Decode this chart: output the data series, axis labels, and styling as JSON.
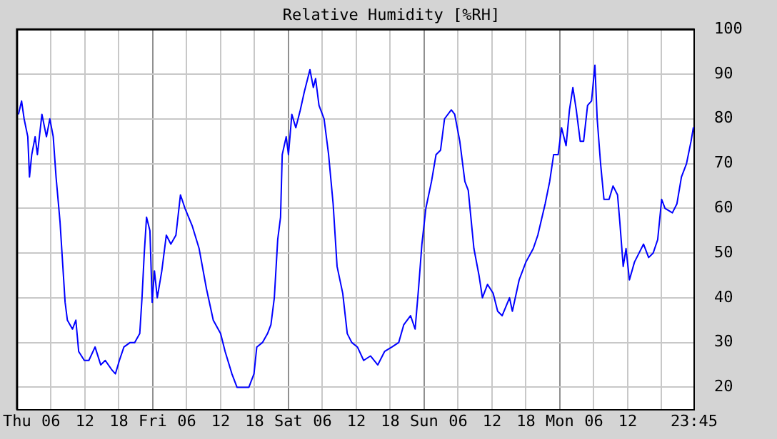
{
  "chart_data": {
    "type": "line",
    "title": "Relative Humidity [%RH]",
    "x": [
      "--01-02T00:15",
      "--01-02T00:48",
      "--01-02T01:15",
      "--01-02T01:54",
      "--01-02T02:12",
      "--01-02T02:36",
      "--01-02T03:12",
      "--01-02T03:36",
      "--01-02T04:24",
      "--01-02T05:12",
      "--01-02T05:48",
      "--01-02T06:24",
      "--01-02T06:54",
      "--01-02T07:36",
      "--01-02T08:06",
      "--01-02T08:30",
      "--01-02T08:54",
      "--01-02T09:48",
      "--01-02T10:24",
      "--01-02T10:54",
      "--01-02T11:54",
      "--01-02T12:42",
      "--01-02T13:48",
      "--01-02T14:48",
      "--01-02T15:36",
      "--01-02T16:42",
      "--01-02T17:24",
      "--01-02T18:06",
      "--01-02T18:54",
      "--01-02T20:00",
      "--01-02T20:48",
      "--01-02T21:42",
      "--01-02T22:06",
      "--01-02T22:30",
      "--01-02T22:54",
      "--01-02T23:30",
      "--01-02T23:54",
      "--01-03T00:18",
      "--01-03T00:48",
      "--01-03T01:36",
      "--01-03T02:24",
      "--01-03T03:12",
      "--01-03T04:06",
      "--01-03T04:54",
      "--01-03T05:42",
      "--01-03T07:00",
      "--01-03T08:12",
      "--01-03T09:30",
      "--01-03T10:42",
      "--01-03T12:00",
      "--01-03T12:48",
      "--01-03T14:00",
      "--01-03T14:54",
      "--01-03T16:00",
      "--01-03T17:00",
      "--01-03T17:54",
      "--01-03T18:24",
      "--01-03T19:24",
      "--01-03T20:18",
      "--01-03T20:54",
      "--01-03T21:30",
      "--01-03T22:06",
      "--01-03T22:36",
      "--01-03T22:54",
      "--01-03T23:36",
      "--01-04T00:00",
      "--01-04T00:36",
      "--01-04T01:18",
      "--01-04T02:06",
      "--01-04T02:48",
      "--01-04T03:48",
      "--01-04T04:24",
      "--01-04T04:48",
      "--01-04T05:24",
      "--01-04T06:18",
      "--01-04T07:06",
      "--01-04T07:54",
      "--01-04T08:36",
      "--01-04T09:36",
      "--01-04T10:24",
      "--01-04T11:12",
      "--01-04T12:12",
      "--01-04T13:18",
      "--01-04T14:30",
      "--01-04T15:48",
      "--01-04T17:00",
      "--01-04T18:18",
      "--01-04T19:30",
      "--01-04T20:24",
      "--01-04T21:36",
      "--01-04T22:24",
      "--01-04T23:00",
      "--01-04T23:36",
      "--01-05T00:18",
      "--01-05T01:18",
      "--01-05T02:06",
      "--01-05T02:54",
      "--01-05T03:36",
      "--01-05T04:48",
      "--01-05T05:24",
      "--01-05T06:18",
      "--01-05T07:12",
      "--01-05T07:48",
      "--01-05T08:48",
      "--01-05T09:42",
      "--01-05T10:18",
      "--01-05T11:12",
      "--01-05T12:12",
      "--01-05T13:00",
      "--01-05T13:48",
      "--01-05T15:06",
      "--01-05T15:36",
      "--01-05T16:48",
      "--01-05T18:00",
      "--01-05T19:18",
      "--01-05T20:06",
      "--01-05T21:24",
      "--01-05T22:12",
      "--01-05T22:54",
      "--01-05T23:42",
      "--01-06T00:18",
      "--01-06T01:06",
      "--01-06T01:42",
      "--01-06T02:18",
      "--01-06T02:54",
      "--01-06T03:36",
      "--01-06T04:12",
      "--01-06T04:54",
      "--01-06T05:36",
      "--01-06T06:12",
      "--01-06T06:36",
      "--01-06T07:12",
      "--01-06T07:48",
      "--01-06T08:42",
      "--01-06T09:24",
      "--01-06T10:12",
      "--01-06T10:36",
      "--01-06T11:12",
      "--01-06T11:42",
      "--01-06T12:18",
      "--01-06T13:12",
      "--01-06T14:00",
      "--01-06T14:48",
      "--01-06T15:42",
      "--01-06T16:30",
      "--01-06T17:18",
      "--01-06T18:00",
      "--01-06T18:36",
      "--01-06T19:54",
      "--01-06T20:42",
      "--01-06T21:30",
      "--01-06T22:24",
      "--01-06T23:12",
      "--01-06T23:36",
      "--01-06T23:45"
    ],
    "series": [
      {
        "color": "#0000ff",
        "values": [
          81,
          84,
          80,
          76,
          67,
          72,
          76,
          72,
          81,
          76,
          80,
          76,
          67,
          57,
          47,
          39,
          35,
          33,
          35,
          28,
          26,
          26,
          29,
          25,
          26,
          24,
          23,
          26,
          29,
          30,
          30,
          32,
          40,
          50,
          58,
          55,
          39,
          46,
          40,
          46,
          54,
          52,
          54,
          63,
          60,
          56,
          51,
          42,
          35,
          32,
          28,
          23,
          20,
          20,
          20,
          23,
          29,
          30,
          32,
          34,
          40,
          53,
          58,
          72,
          76,
          72,
          81,
          78,
          82,
          86,
          91,
          87,
          89,
          83,
          80,
          72,
          61,
          47,
          41,
          32,
          30,
          29,
          26,
          27,
          25,
          28,
          29,
          30,
          34,
          36,
          33,
          42,
          52,
          60,
          66,
          72,
          73,
          80,
          82,
          81,
          75,
          66,
          64,
          51,
          45,
          40,
          43,
          41,
          37,
          36,
          40,
          37,
          44,
          48,
          51,
          54,
          61,
          66,
          72,
          72,
          78,
          74,
          82,
          87,
          82,
          75,
          75,
          83,
          84,
          92,
          80,
          70,
          62,
          62,
          65,
          63,
          57,
          47,
          51,
          44,
          48,
          50,
          52,
          49,
          50,
          53,
          62,
          60,
          59,
          61,
          67,
          70,
          75,
          78,
          78
        ]
      }
    ],
    "xlim": [
      "--01-02T00:00",
      "--01-06T23:45"
    ],
    "xticks": [
      {
        "value": "--01-02T00:00",
        "label": "Thu"
      },
      {
        "value": "--01-02T06:00",
        "label": "06"
      },
      {
        "value": "--01-02T12:00",
        "label": "12"
      },
      {
        "value": "--01-02T18:00",
        "label": "18"
      },
      {
        "value": "--01-03T00:00",
        "label": "Fri"
      },
      {
        "value": "--01-03T06:00",
        "label": "06"
      },
      {
        "value": "--01-03T12:00",
        "label": "12"
      },
      {
        "value": "--01-03T18:00",
        "label": "18"
      },
      {
        "value": "--01-04T00:00",
        "label": "Sat"
      },
      {
        "value": "--01-04T06:00",
        "label": "06"
      },
      {
        "value": "--01-04T12:00",
        "label": "12"
      },
      {
        "value": "--01-04T18:00",
        "label": "18"
      },
      {
        "value": "--01-05T00:00",
        "label": "Sun"
      },
      {
        "value": "--01-05T06:00",
        "label": "06"
      },
      {
        "value": "--01-05T12:00",
        "label": "12"
      },
      {
        "value": "--01-05T18:00",
        "label": "18"
      },
      {
        "value": "--01-06T00:00",
        "label": "Mon"
      },
      {
        "value": "--01-06T06:00",
        "label": "06"
      },
      {
        "value": "--01-06T12:00",
        "label": "12"
      },
      {
        "value": "--01-06T18:00",
        "label": null
      },
      {
        "value": "--01-06T23:45",
        "label": "23:45"
      }
    ],
    "ylim": [
      15,
      100
    ],
    "yticks": [
      20,
      30,
      40,
      50,
      60,
      70,
      80,
      90,
      100
    ],
    "grid": true,
    "marker": "none",
    "line_style": "solid",
    "legend": false
  }
}
